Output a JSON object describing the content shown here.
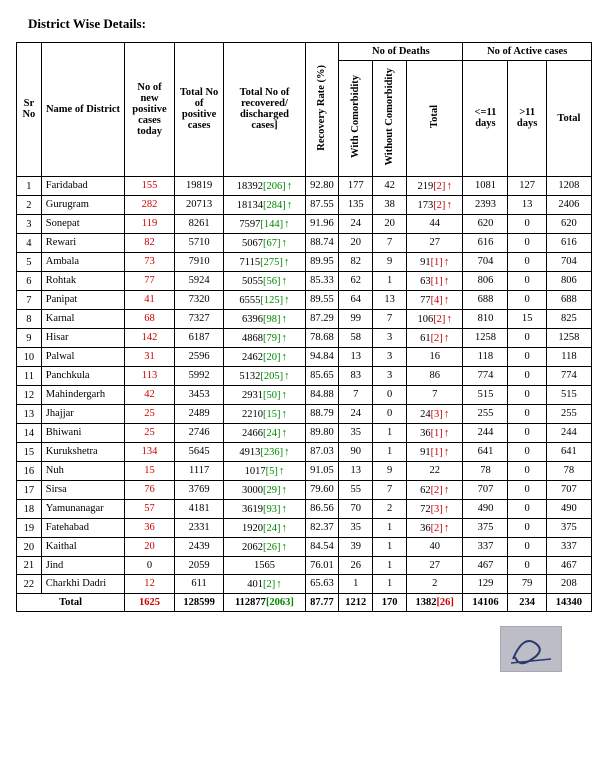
{
  "title": "District Wise Details:",
  "headers": {
    "sr": "Sr No",
    "district": "Name of District",
    "new": "No of new positive cases today",
    "total_pos": "Total No of positive cases",
    "recovered": "Total No of recovered/ discharged cases]",
    "recovery_rate": "Recovery Rate (%)",
    "deaths_group": "No of Deaths",
    "with_co": "With Comorbidity",
    "without_co": "Without Comorbidity",
    "deaths_total": "Total",
    "active_group": "No of Active cases",
    "le11": "<=11 days",
    "gt11": ">11 days",
    "active_total": "Total"
  },
  "rows": [
    {
      "sr": "1",
      "district": "Faridabad",
      "new": "155",
      "total": "19819",
      "rec": "18392",
      "rec_b": "206",
      "rec_arrow": "up",
      "rate": "92.80",
      "wc": "177",
      "woc": "42",
      "dt": "219",
      "dt_b": "2",
      "dt_arrow": "up-red",
      "a11": "1081",
      "a11b": "127",
      "at": "1208"
    },
    {
      "sr": "2",
      "district": "Gurugram",
      "new": "282",
      "total": "20713",
      "rec": "18134",
      "rec_b": "284",
      "rec_arrow": "up",
      "rate": "87.55",
      "wc": "135",
      "woc": "38",
      "dt": "173",
      "dt_b": "2",
      "dt_arrow": "up-red",
      "a11": "2393",
      "a11b": "13",
      "at": "2406"
    },
    {
      "sr": "3",
      "district": "Sonepat",
      "new": "119",
      "total": "8261",
      "rec": "7597",
      "rec_b": "144",
      "rec_arrow": "up",
      "rate": "91.96",
      "wc": "24",
      "woc": "20",
      "dt": "44",
      "dt_b": "",
      "dt_arrow": "",
      "a11": "620",
      "a11b": "0",
      "at": "620"
    },
    {
      "sr": "4",
      "district": "Rewari",
      "new": "82",
      "total": "5710",
      "rec": "5067",
      "rec_b": "67",
      "rec_arrow": "up",
      "rate": "88.74",
      "wc": "20",
      "woc": "7",
      "dt": "27",
      "dt_b": "",
      "dt_arrow": "",
      "a11": "616",
      "a11b": "0",
      "at": "616"
    },
    {
      "sr": "5",
      "district": "Ambala",
      "new": "73",
      "total": "7910",
      "rec": "7115",
      "rec_b": "275",
      "rec_arrow": "up",
      "rate": "89.95",
      "wc": "82",
      "woc": "9",
      "dt": "91",
      "dt_b": "1",
      "dt_arrow": "up-red",
      "a11": "704",
      "a11b": "0",
      "at": "704"
    },
    {
      "sr": "6",
      "district": "Rohtak",
      "new": "77",
      "total": "5924",
      "rec": "5055",
      "rec_b": "56",
      "rec_arrow": "up",
      "rate": "85.33",
      "wc": "62",
      "woc": "1",
      "dt": "63",
      "dt_b": "1",
      "dt_arrow": "up-red",
      "a11": "806",
      "a11b": "0",
      "at": "806"
    },
    {
      "sr": "7",
      "district": "Panipat",
      "new": "41",
      "total": "7320",
      "rec": "6555",
      "rec_b": "125",
      "rec_arrow": "up",
      "rate": "89.55",
      "wc": "64",
      "woc": "13",
      "dt": "77",
      "dt_b": "4",
      "dt_arrow": "up-red",
      "a11": "688",
      "a11b": "0",
      "at": "688"
    },
    {
      "sr": "8",
      "district": "Karnal",
      "new": "68",
      "total": "7327",
      "rec": "6396",
      "rec_b": "98",
      "rec_arrow": "up",
      "rate": "87.29",
      "wc": "99",
      "woc": "7",
      "dt": "106",
      "dt_b": "2",
      "dt_arrow": "up-red",
      "a11": "810",
      "a11b": "15",
      "at": "825"
    },
    {
      "sr": "9",
      "district": "Hisar",
      "new": "142",
      "total": "6187",
      "rec": "4868",
      "rec_b": "79",
      "rec_arrow": "up",
      "rate": "78.68",
      "wc": "58",
      "woc": "3",
      "dt": "61",
      "dt_b": "2",
      "dt_arrow": "up-red",
      "a11": "1258",
      "a11b": "0",
      "at": "1258"
    },
    {
      "sr": "10",
      "district": "Palwal",
      "new": "31",
      "total": "2596",
      "rec": "2462",
      "rec_b": "20",
      "rec_arrow": "up",
      "rate": "94.84",
      "wc": "13",
      "woc": "3",
      "dt": "16",
      "dt_b": "",
      "dt_arrow": "",
      "a11": "118",
      "a11b": "0",
      "at": "118"
    },
    {
      "sr": "11",
      "district": "Panchkula",
      "new": "113",
      "total": "5992",
      "rec": "5132",
      "rec_b": "205",
      "rec_arrow": "up",
      "rate": "85.65",
      "wc": "83",
      "woc": "3",
      "dt": "86",
      "dt_b": "",
      "dt_arrow": "",
      "a11": "774",
      "a11b": "0",
      "at": "774"
    },
    {
      "sr": "12",
      "district": "Mahindergarh",
      "new": "42",
      "total": "3453",
      "rec": "2931",
      "rec_b": "50",
      "rec_arrow": "up",
      "rate": "84.88",
      "wc": "7",
      "woc": "0",
      "dt": "7",
      "dt_b": "",
      "dt_arrow": "",
      "a11": "515",
      "a11b": "0",
      "at": "515"
    },
    {
      "sr": "13",
      "district": "Jhajjar",
      "new": "25",
      "total": "2489",
      "rec": "2210",
      "rec_b": "15",
      "rec_arrow": "up",
      "rate": "88.79",
      "wc": "24",
      "woc": "0",
      "dt": "24",
      "dt_b": "3",
      "dt_arrow": "up-red",
      "a11": "255",
      "a11b": "0",
      "at": "255"
    },
    {
      "sr": "14",
      "district": "Bhiwani",
      "new": "25",
      "total": "2746",
      "rec": "2466",
      "rec_b": "24",
      "rec_arrow": "up",
      "rate": "89.80",
      "wc": "35",
      "woc": "1",
      "dt": "36",
      "dt_b": "1",
      "dt_arrow": "up-red",
      "a11": "244",
      "a11b": "0",
      "at": "244"
    },
    {
      "sr": "15",
      "district": "Kurukshetra",
      "new": "134",
      "total": "5645",
      "rec": "4913",
      "rec_b": "236",
      "rec_arrow": "up",
      "rate": "87.03",
      "wc": "90",
      "woc": "1",
      "dt": "91",
      "dt_b": "1",
      "dt_arrow": "up-red",
      "a11": "641",
      "a11b": "0",
      "at": "641"
    },
    {
      "sr": "16",
      "district": "Nuh",
      "new": "15",
      "total": "1117",
      "rec": "1017",
      "rec_b": "5",
      "rec_arrow": "up",
      "rate": "91.05",
      "wc": "13",
      "woc": "9",
      "dt": "22",
      "dt_b": "",
      "dt_arrow": "",
      "a11": "78",
      "a11b": "0",
      "at": "78"
    },
    {
      "sr": "17",
      "district": "Sirsa",
      "new": "76",
      "total": "3769",
      "rec": "3000",
      "rec_b": "29",
      "rec_arrow": "up",
      "rate": "79.60",
      "wc": "55",
      "woc": "7",
      "dt": "62",
      "dt_b": "2",
      "dt_arrow": "up-red",
      "a11": "707",
      "a11b": "0",
      "at": "707"
    },
    {
      "sr": "18",
      "district": "Yamunanagar",
      "new": "57",
      "total": "4181",
      "rec": "3619",
      "rec_b": "93",
      "rec_arrow": "up",
      "rate": "86.56",
      "wc": "70",
      "woc": "2",
      "dt": "72",
      "dt_b": "3",
      "dt_arrow": "up-red",
      "a11": "490",
      "a11b": "0",
      "at": "490"
    },
    {
      "sr": "19",
      "district": "Fatehabad",
      "new": "36",
      "total": "2331",
      "rec": "1920",
      "rec_b": "24",
      "rec_arrow": "up",
      "rate": "82.37",
      "wc": "35",
      "woc": "1",
      "dt": "36",
      "dt_b": "2",
      "dt_arrow": "up-red",
      "a11": "375",
      "a11b": "0",
      "at": "375"
    },
    {
      "sr": "20",
      "district": "Kaithal",
      "new": "20",
      "total": "2439",
      "rec": "2062",
      "rec_b": "26",
      "rec_arrow": "up",
      "rate": "84.54",
      "wc": "39",
      "woc": "1",
      "dt": "40",
      "dt_b": "",
      "dt_arrow": "",
      "a11": "337",
      "a11b": "0",
      "at": "337"
    },
    {
      "sr": "21",
      "district": "Jind",
      "new": "0",
      "total": "2059",
      "rec": "1565",
      "rec_b": "",
      "rec_arrow": "",
      "rate": "76.01",
      "wc": "26",
      "woc": "1",
      "dt": "27",
      "dt_b": "",
      "dt_arrow": "",
      "a11": "467",
      "a11b": "0",
      "at": "467"
    },
    {
      "sr": "22",
      "district": "Charkhi Dadri",
      "new": "12",
      "total": "611",
      "rec": "401",
      "rec_b": "2",
      "rec_arrow": "up",
      "rate": "65.63",
      "wc": "1",
      "woc": "1",
      "dt": "2",
      "dt_b": "",
      "dt_arrow": "",
      "a11": "129",
      "a11b": "79",
      "at": "208"
    }
  ],
  "total": {
    "label": "Total",
    "new": "1625",
    "total": "128599",
    "rec": "112877",
    "rec_b": "2063",
    "rate": "87.77",
    "wc": "1212",
    "woc": "170",
    "dt": "1382",
    "dt_b": "26",
    "a11": "14106",
    "a11b": "234",
    "at": "14340"
  },
  "colors": {
    "red": "#c00000",
    "green": "#008000"
  }
}
